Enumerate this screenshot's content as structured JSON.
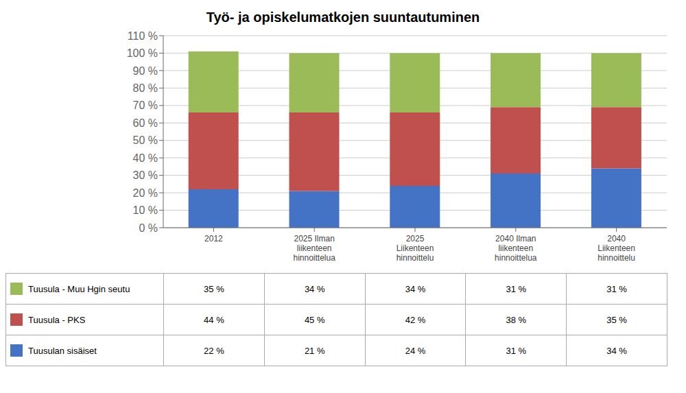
{
  "chart_data": {
    "type": "bar",
    "title": "Työ- ja opiskelumatkojen suuntautuminen",
    "categories": [
      "2012",
      "2025 Ilman\nliikenteen\nhinnoittelua",
      "2025\nLiikenteen\nhinnoittelu",
      "2040 Ilman\nliikenteen\nhinnoittelua",
      "2040\nLiikenteen\nhinnoittelu"
    ],
    "stacked": true,
    "grid": true,
    "series": [
      {
        "name": "Tuusulan sisäiset",
        "color": "#4472C4",
        "values": [
          0.22,
          0.21,
          0.24,
          0.31,
          0.34
        ],
        "value_labels": [
          "22 %",
          "21 %",
          "24 %",
          "31 %",
          "34 %"
        ]
      },
      {
        "name": "Tuusula - PKS",
        "color": "#C0504D",
        "values": [
          0.44,
          0.45,
          0.42,
          0.38,
          0.35
        ],
        "value_labels": [
          "44 %",
          "45 %",
          "42 %",
          "38 %",
          "35 %"
        ]
      },
      {
        "name": "Tuusula - Muu Hgin seutu",
        "color": "#9BBB59",
        "values": [
          0.35,
          0.34,
          0.34,
          0.31,
          0.31
        ],
        "value_labels": [
          "35 %",
          "34 %",
          "34 %",
          "31 %",
          "31 %"
        ]
      }
    ],
    "ylim": [
      0,
      1.1
    ],
    "yticks": [
      {
        "value": 0,
        "label": "0 %"
      },
      {
        "value": 0.1,
        "label": "10 %"
      },
      {
        "value": 0.2,
        "label": "20 %"
      },
      {
        "value": 0.3,
        "label": "30 %"
      },
      {
        "value": 0.4,
        "label": "40 %"
      },
      {
        "value": 0.5,
        "label": "50 %"
      },
      {
        "value": 0.6,
        "label": "60 %"
      },
      {
        "value": 0.7,
        "label": "70 %"
      },
      {
        "value": 0.8,
        "label": "80 %"
      },
      {
        "value": 0.9,
        "label": "90 %"
      },
      {
        "value": 1.0,
        "label": "100 %"
      },
      {
        "value": 1.1,
        "label": "110 %"
      }
    ]
  }
}
